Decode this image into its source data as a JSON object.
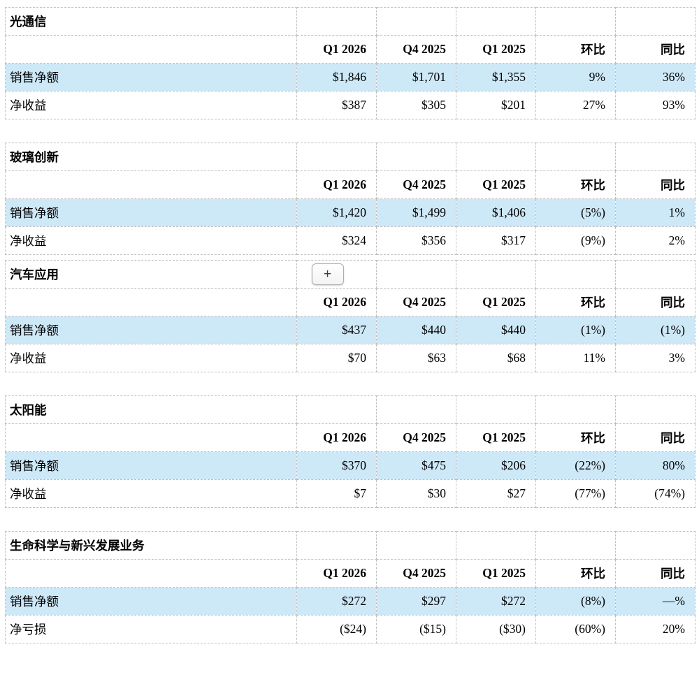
{
  "expand_button": {
    "label": "+"
  },
  "styles": {
    "highlight_color": "#cde8f7",
    "border_color": "#bfbfbf"
  },
  "sections": [
    {
      "title": "光通信",
      "columns": [
        "Q1 2026",
        "Q4 2025",
        "Q1 2025",
        "环比",
        "同比"
      ],
      "has_expand_button": false,
      "rows": [
        {
          "label": "销售净额",
          "values": [
            "$1,846",
            "$1,701",
            "$1,355",
            "9%",
            "36%"
          ],
          "highlight": true
        },
        {
          "label": "净收益",
          "values": [
            "$387",
            "$305",
            "$201",
            "27%",
            "93%"
          ],
          "highlight": false
        }
      ]
    },
    {
      "title": "玻璃创新",
      "columns": [
        "Q1 2026",
        "Q4 2025",
        "Q1 2025",
        "环比",
        "同比"
      ],
      "has_expand_button": false,
      "rows": [
        {
          "label": "销售净额",
          "values": [
            "$1,420",
            "$1,499",
            "$1,406",
            "(5%)",
            "1%"
          ],
          "highlight": true
        },
        {
          "label": "净收益",
          "values": [
            "$324",
            "$356",
            "$317",
            "(9%)",
            "2%"
          ],
          "highlight": false
        }
      ]
    },
    {
      "title": "汽车应用",
      "columns": [
        "Q1 2026",
        "Q4 2025",
        "Q1 2025",
        "环比",
        "同比"
      ],
      "has_expand_button": true,
      "rows": [
        {
          "label": "销售净额",
          "values": [
            "$437",
            "$440",
            "$440",
            "(1%)",
            "(1%)"
          ],
          "highlight": true
        },
        {
          "label": "净收益",
          "values": [
            "$70",
            "$63",
            "$68",
            "11%",
            "3%"
          ],
          "highlight": false
        }
      ]
    },
    {
      "title": "太阳能",
      "columns": [
        "Q1 2026",
        "Q4 2025",
        "Q1 2025",
        "环比",
        "同比"
      ],
      "has_expand_button": false,
      "rows": [
        {
          "label": "销售净额",
          "values": [
            "$370",
            "$475",
            "$206",
            "(22%)",
            "80%"
          ],
          "highlight": true
        },
        {
          "label": "净收益",
          "values": [
            "$7",
            "$30",
            "$27",
            "(77%)",
            "(74%)"
          ],
          "highlight": false
        }
      ]
    },
    {
      "title": "生命科学与新兴发展业务",
      "columns": [
        "Q1 2026",
        "Q4 2025",
        "Q1 2025",
        "环比",
        "同比"
      ],
      "has_expand_button": false,
      "rows": [
        {
          "label": "销售净额",
          "values": [
            "$272",
            "$297",
            "$272",
            "(8%)",
            "—%"
          ],
          "highlight": true
        },
        {
          "label": "净亏损",
          "values": [
            "($24)",
            "($15)",
            "($30)",
            "(60%)",
            "20%"
          ],
          "highlight": false
        }
      ]
    }
  ]
}
